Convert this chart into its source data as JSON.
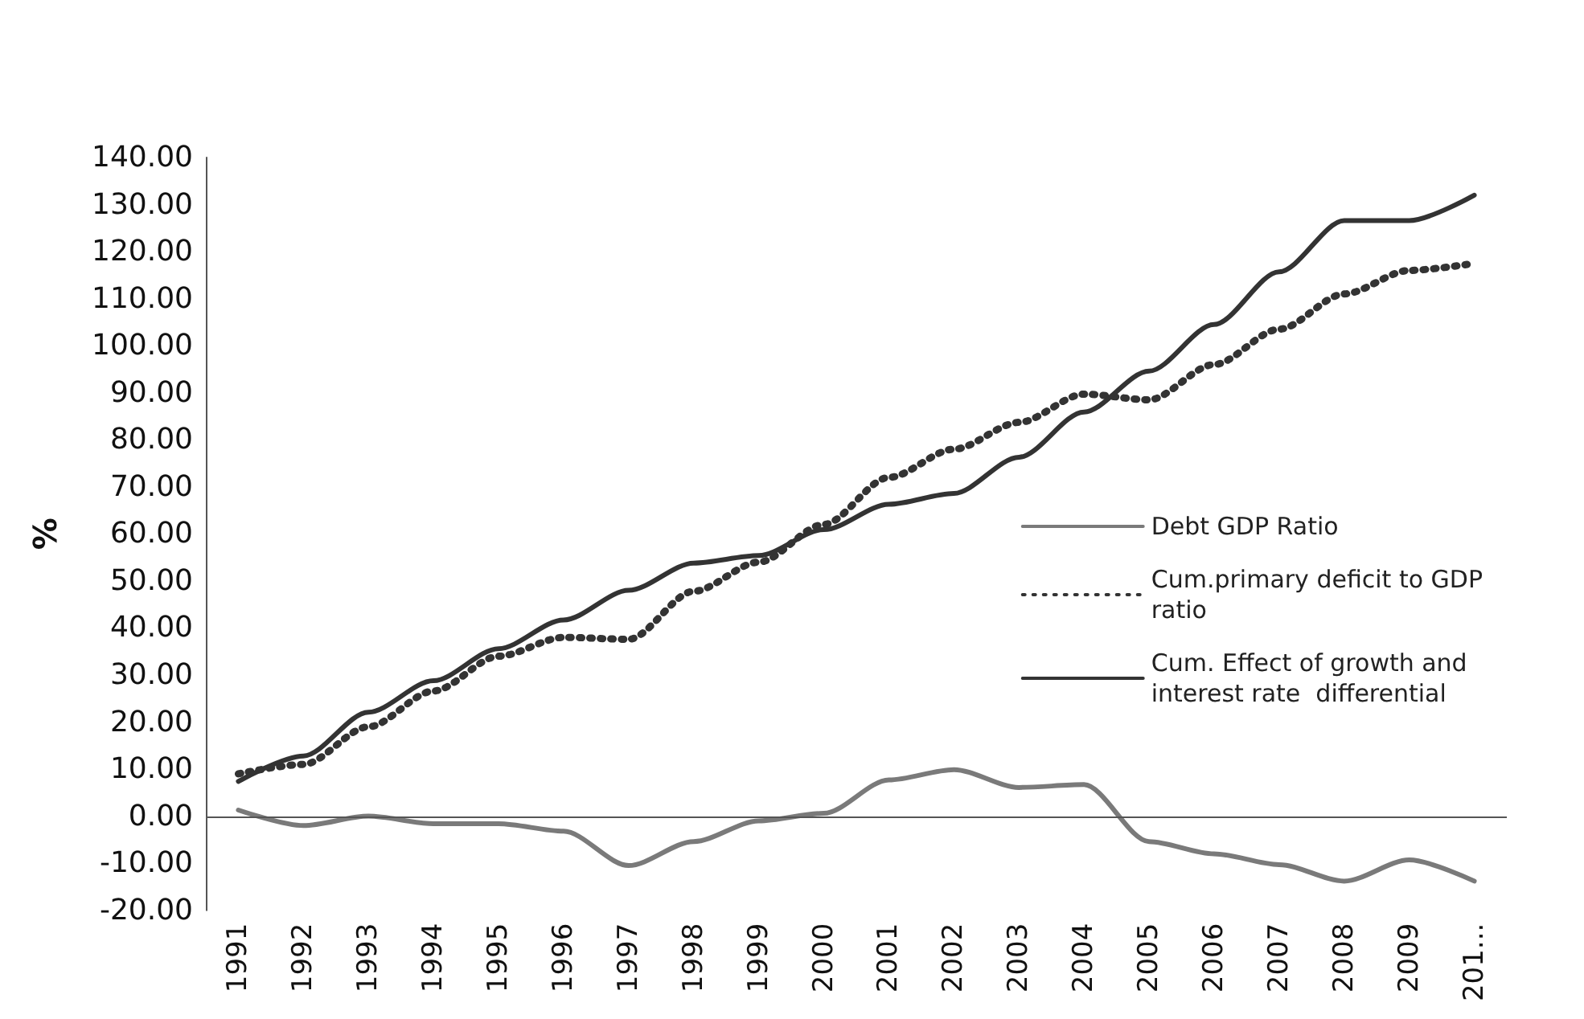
{
  "chart_data": {
    "type": "line",
    "ylabel": "%",
    "categories": [
      "1991",
      "1992",
      "1993",
      "1994",
      "1995",
      "1996",
      "1997",
      "1998",
      "1999",
      "2000",
      "2001",
      "2002",
      "2003",
      "2004",
      "2005",
      "2006",
      "2007",
      "2008",
      "2009",
      "201..."
    ],
    "series": [
      {
        "name": "Debt GDP Ratio",
        "color": "#7a7a7a",
        "line_style": "solid",
        "values": [
          1.3,
          -2,
          0,
          -1.6,
          -1.6,
          -3.2,
          -10.5,
          -5.4,
          -1,
          0.6,
          7.7,
          9.9,
          6.1,
          6.7,
          -5.4,
          -8,
          -10.3,
          -13.8,
          -9.3,
          -13.8
        ]
      },
      {
        "name": "Cum.primary deficit to GDP ratio",
        "color": "#333333",
        "line_style": "dotted",
        "values": [
          9,
          11,
          19,
          26.6,
          34,
          38,
          37.6,
          47.8,
          54,
          62,
          72,
          78,
          83.7,
          89.7,
          88.5,
          96,
          103.5,
          111,
          116,
          117.5
        ]
      },
      {
        "name": "Cum. Effect of growth and interest rate  differential",
        "color": "#333333",
        "line_style": "solid",
        "values": [
          7.4,
          12.8,
          22.1,
          28.8,
          35.6,
          41.7,
          48,
          53.8,
          55.4,
          60.9,
          66.3,
          68.6,
          76.3,
          85.9,
          94.6,
          104.5,
          115.7,
          126.6,
          126.6,
          132
        ]
      }
    ],
    "ylim": [
      -20,
      140
    ],
    "yticks": [
      {
        "value": -20,
        "label": "-20.00"
      },
      {
        "value": -10,
        "label": "-10.00"
      },
      {
        "value": 0,
        "label": "0.00"
      },
      {
        "value": 10,
        "label": "10.00"
      },
      {
        "value": 20,
        "label": "20.00"
      },
      {
        "value": 30,
        "label": "30.00"
      },
      {
        "value": 40,
        "label": "40.00"
      },
      {
        "value": 50,
        "label": "50.00"
      },
      {
        "value": 60,
        "label": "60.00"
      },
      {
        "value": 70,
        "label": "70.00"
      },
      {
        "value": 80,
        "label": "80.00"
      },
      {
        "value": 90,
        "label": "90.00"
      },
      {
        "value": 100,
        "label": "100.00"
      },
      {
        "value": 110,
        "label": "110.00"
      },
      {
        "value": 120,
        "label": "120.00"
      },
      {
        "value": 130,
        "label": "130.00"
      },
      {
        "value": 140,
        "label": "140.00"
      }
    ],
    "ref_lines": [
      {
        "axis": "y",
        "value": 0,
        "color": "#555555",
        "line_style": "solid"
      }
    ],
    "grid": false,
    "legend": "right",
    "marker": "none"
  }
}
